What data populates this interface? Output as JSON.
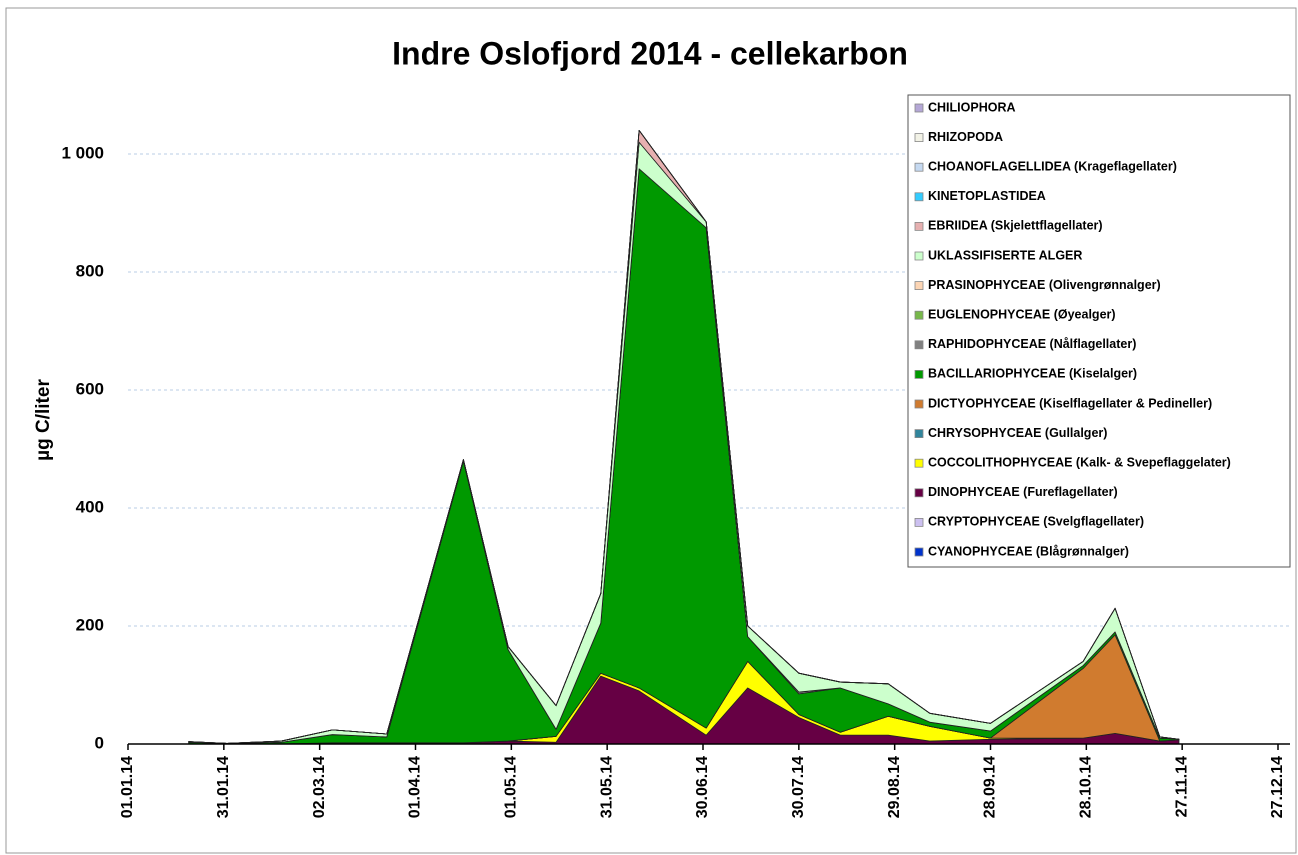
{
  "chart_data": {
    "type": "stacked_area",
    "title": "Indre Oslofjord 2014 - cellekarbon",
    "y_label": "µg C/liter",
    "x": [
      "2014-01-20",
      "2014-02-01",
      "2014-02-18",
      "2014-03-06",
      "2014-03-23",
      "2014-04-16",
      "2014-04-30",
      "2014-05-15",
      "2014-05-29",
      "2014-06-10",
      "2014-07-01",
      "2014-07-14",
      "2014-07-30",
      "2014-08-12",
      "2014-08-27",
      "2014-09-09",
      "2014-09-28",
      "2014-10-27",
      "2014-11-06",
      "2014-11-20",
      "2014-11-26"
    ],
    "xlim": [
      "2014-01-01",
      "2014-12-27"
    ],
    "xticks": [
      {
        "value": "2014-01-01",
        "label": "01.01.14"
      },
      {
        "value": "2014-01-31",
        "label": "31.01.14"
      },
      {
        "value": "2014-03-02",
        "label": "02.03.14"
      },
      {
        "value": "2014-04-01",
        "label": "01.04.14"
      },
      {
        "value": "2014-05-01",
        "label": "01.05.14"
      },
      {
        "value": "2014-05-31",
        "label": "31.05.14"
      },
      {
        "value": "2014-06-30",
        "label": "30.06.14"
      },
      {
        "value": "2014-07-30",
        "label": "30.07.14"
      },
      {
        "value": "2014-08-29",
        "label": "29.08.14"
      },
      {
        "value": "2014-09-28",
        "label": "28.09.14"
      },
      {
        "value": "2014-10-28",
        "label": "28.10.14"
      },
      {
        "value": "2014-11-27",
        "label": "27.11.14"
      },
      {
        "value": "2014-12-27",
        "label": "27.12.14"
      }
    ],
    "ylim": [
      0,
      1100
    ],
    "yticks": [
      0,
      200,
      400,
      600,
      800,
      {
        "value": 1000,
        "label": "1 000"
      }
    ],
    "grid": true,
    "legend": "top-right",
    "series": [
      {
        "name": "CHILIOPHORA",
        "color": "#b4a7d6",
        "values": [
          0,
          0,
          0,
          0,
          0,
          0,
          0,
          0,
          0,
          0,
          0,
          0,
          0,
          0,
          0,
          0,
          0,
          0,
          0,
          0,
          0
        ]
      },
      {
        "name": "RHIZOPODA",
        "color": "#f2f2e6",
        "values": [
          0,
          0,
          0,
          0,
          0,
          0,
          0,
          0,
          0,
          0,
          0,
          0,
          0,
          0,
          0,
          0,
          0,
          0,
          0,
          0,
          0
        ]
      },
      {
        "name": "CHOANOFLAGELLIDEA (Krageflagellater)",
        "color": "#c5d9f1",
        "values": [
          0,
          0,
          0,
          0,
          0,
          0,
          0,
          0,
          0,
          0,
          0,
          0,
          0,
          0,
          0,
          0,
          0,
          0,
          0,
          0,
          0
        ]
      },
      {
        "name": "KINETOPLASTIDEA",
        "color": "#33ccff",
        "values": [
          0,
          0,
          0,
          0,
          0,
          0,
          0,
          0,
          0,
          0,
          0,
          0,
          0,
          0,
          0,
          0,
          0,
          0,
          0,
          0,
          0
        ]
      },
      {
        "name": "EBRIIDEA (Skjelettflagellater)",
        "color": "#e6b0b0",
        "values": [
          0,
          0,
          0,
          0,
          0,
          0,
          0,
          0,
          0,
          20,
          0,
          0,
          0,
          0,
          0,
          0,
          0,
          0,
          0,
          0,
          0
        ]
      },
      {
        "name": "UKLASSIFISERTE ALGER",
        "color": "#ccffcc",
        "values": [
          1,
          0,
          2,
          8,
          5,
          2,
          5,
          40,
          50,
          45,
          10,
          18,
          32,
          10,
          34,
          15,
          13,
          7,
          40,
          2,
          0
        ]
      },
      {
        "name": "PRASINOPHYCEAE (Olivengrønnalger)",
        "color": "#fcd5b4",
        "values": [
          0,
          0,
          0,
          0,
          0,
          0,
          0,
          0,
          0,
          0,
          0,
          0,
          0,
          0,
          0,
          0,
          0,
          0,
          0,
          0,
          0
        ]
      },
      {
        "name": "EUGLENOPHYCEAE (Øyealger)",
        "color": "#77b84a",
        "values": [
          0,
          0,
          0,
          0,
          0,
          0,
          0,
          0,
          0,
          0,
          0,
          0,
          0,
          0,
          0,
          0,
          0,
          0,
          0,
          0,
          0
        ]
      },
      {
        "name": "RAPHIDOPHYCEAE (Nålflagellater)",
        "color": "#808080",
        "values": [
          0,
          0,
          0,
          0,
          0,
          0,
          0,
          0,
          0,
          0,
          0,
          0,
          3,
          0,
          0,
          0,
          0,
          0,
          0,
          0,
          0
        ]
      },
      {
        "name": "BACILLARIOPHYCEAE (Kiselalger)",
        "color": "#009900",
        "values": [
          3,
          1,
          3,
          14,
          10,
          478,
          155,
          12,
          85,
          880,
          848,
          42,
          35,
          75,
          21,
          7,
          12,
          5,
          5,
          5,
          1
        ]
      },
      {
        "name": "DICTYOPHYCEAE (Kiselflagellater & Pedineller)",
        "color": "#d07b2f",
        "values": [
          0,
          0,
          0,
          0,
          0,
          0,
          0,
          0,
          0,
          0,
          0,
          0,
          0,
          0,
          0,
          0,
          0,
          118,
          167,
          0,
          0
        ]
      },
      {
        "name": "CHRYSOPHYCEAE (Gullalger)",
        "color": "#31859c",
        "values": [
          0,
          0,
          0,
          0,
          0,
          0,
          0,
          0,
          0,
          0,
          0,
          0,
          0,
          0,
          0,
          0,
          0,
          0,
          0,
          0,
          0
        ]
      },
      {
        "name": "COCCOLITHOPHYCEAE (Kalk- & Svepeflaggelater)",
        "color": "#ffff00",
        "values": [
          0,
          0,
          0,
          0,
          0,
          0,
          0,
          10,
          5,
          5,
          12,
          45,
          5,
          5,
          32,
          25,
          2,
          0,
          0,
          0,
          0
        ]
      },
      {
        "name": "DINOPHYCEAE (Fureflagellater)",
        "color": "#660044",
        "values": [
          0,
          0,
          0,
          2,
          2,
          2,
          5,
          3,
          115,
          90,
          15,
          95,
          45,
          15,
          15,
          5,
          8,
          10,
          18,
          5,
          7
        ]
      },
      {
        "name": "CRYPTOPHYCEAE (Svelgflagellater)",
        "color": "#ccc0f0",
        "values": [
          0,
          0,
          0,
          0,
          0,
          0,
          0,
          0,
          0,
          0,
          0,
          0,
          0,
          0,
          0,
          0,
          0,
          0,
          0,
          0,
          0
        ]
      },
      {
        "name": "CYANOPHYCEAE (Blågrønnalger)",
        "color": "#0033cc",
        "values": [
          0,
          0,
          0,
          0,
          0,
          0,
          0,
          0,
          0,
          0,
          0,
          0,
          0,
          0,
          0,
          0,
          0,
          0,
          0,
          0,
          0
        ]
      }
    ]
  }
}
